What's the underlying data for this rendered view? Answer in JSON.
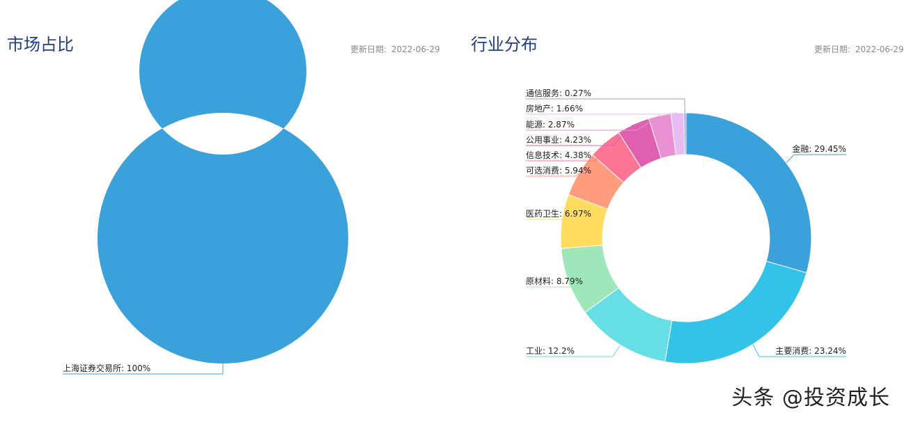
{
  "panels": [
    {
      "title": "市场占比",
      "date_label": "更新日期:",
      "date": "2022-06-29"
    },
    {
      "title": "行业分布",
      "date_label": "更新日期:",
      "date": "2022-06-29"
    }
  ],
  "chart_data": [
    {
      "type": "pie",
      "donut": true,
      "slices": [
        {
          "name": "上海证券交易所",
          "value": 100,
          "label": "上海证券交易所: 100%",
          "color": "#3aa1da"
        }
      ]
    },
    {
      "type": "pie",
      "donut": true,
      "slices": [
        {
          "name": "金融",
          "value": 29.45,
          "label": "金融: 29.45%",
          "color": "#3aa1da"
        },
        {
          "name": "主要消费",
          "value": 23.24,
          "label": "主要消费: 23.24%",
          "color": "#33c3e8"
        },
        {
          "name": "工业",
          "value": 12.2,
          "label": "工业: 12.2%",
          "color": "#66dee5"
        },
        {
          "name": "原材料",
          "value": 8.79,
          "label": "原材料: 8.79%",
          "color": "#9fe6bb"
        },
        {
          "name": "医药卫生",
          "value": 6.97,
          "label": "医药卫生: 6.97%",
          "color": "#ffdc5e"
        },
        {
          "name": "可选消费",
          "value": 5.94,
          "label": "可选消费: 5.94%",
          "color": "#ff9c7d"
        },
        {
          "name": "信息技术",
          "value": 4.38,
          "label": "信息技术: 4.38%",
          "color": "#fe7593"
        },
        {
          "name": "公用事业",
          "value": 4.23,
          "label": "公用事业: 4.23%",
          "color": "#e060b0"
        },
        {
          "name": "能源",
          "value": 2.87,
          "label": "能源: 2.87%",
          "color": "#e890d2"
        },
        {
          "name": "房地产",
          "value": 1.66,
          "label": "房地产: 1.66%",
          "color": "#e7bcf2"
        },
        {
          "name": "通信服务",
          "value": 0.27,
          "label": "通信服务: 0.27%",
          "color": "#9d96f5"
        }
      ]
    }
  ],
  "watermark": "头条 @投资成长"
}
